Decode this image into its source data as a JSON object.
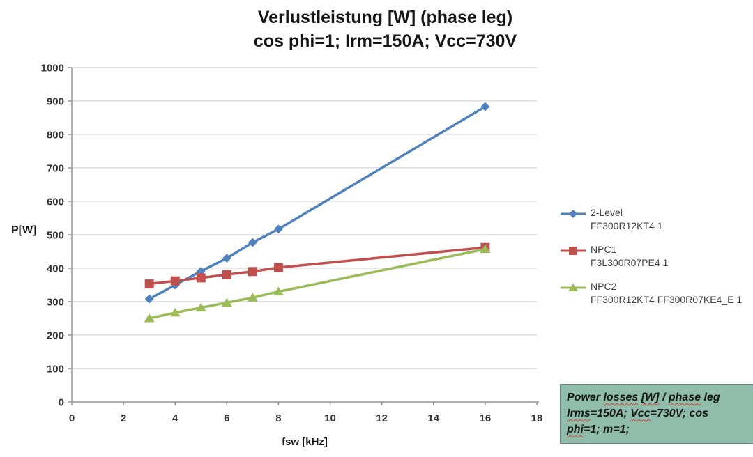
{
  "title": {
    "line1": "Verlustleistung [W] (phase leg)",
    "line2": "cos phi=1; Irm=150A; Vcc=730V"
  },
  "axes": {
    "y_label": "P[W]",
    "x_label": "fsw [kHz]"
  },
  "legend": {
    "items": [
      {
        "label": "2-Level",
        "part": "FF300R12KT4 1",
        "color": "#4F81BD",
        "marker": "diamond"
      },
      {
        "label": "NPC1",
        "part": "F3L300R07PE4 1",
        "color": "#C0504D",
        "marker": "square"
      },
      {
        "label": "NPC2",
        "part": "FF300R12KT4 FF300R07KE4_E 1",
        "color": "#9BBB59",
        "marker": "triangle"
      }
    ]
  },
  "note_box": {
    "bg_color": "#8FBCAB",
    "text": "Power losses [W] / phase leg Irms=150A; Vcc=730V; cos phi=1; m=1;",
    "lines": [
      [
        {
          "t": "Power ",
          "w": false
        },
        {
          "t": "losses",
          "w": true
        },
        {
          "t": " ",
          "w": false
        },
        {
          "t": "[W]",
          "w": true
        },
        {
          "t": " / ",
          "w": false
        },
        {
          "t": "phase",
          "w": true
        },
        {
          "t": " leg",
          "w": false
        }
      ],
      [
        {
          "t": "Irms",
          "w": true
        },
        {
          "t": "=150A; ",
          "w": false
        },
        {
          "t": "Vcc",
          "w": true
        },
        {
          "t": "=730V; cos",
          "w": false
        }
      ],
      [
        {
          "t": "phi",
          "w": true
        },
        {
          "t": "=1; m=1;",
          "w": false
        }
      ]
    ]
  },
  "chart_data": {
    "type": "line",
    "title": "Verlustleistung [W] (phase leg) cos phi=1; Irm=150A; Vcc=730V",
    "xlabel": "fsw [kHz]",
    "ylabel": "P[W]",
    "xlim": [
      0,
      18
    ],
    "ylim": [
      0,
      1000
    ],
    "x_ticks": [
      0,
      2,
      4,
      6,
      8,
      10,
      12,
      14,
      16,
      18
    ],
    "y_ticks": [
      0,
      100,
      200,
      300,
      400,
      500,
      600,
      700,
      800,
      900,
      1000
    ],
    "grid": "horizontal",
    "legend_position": "right",
    "x": [
      3,
      4,
      5,
      6,
      7,
      8,
      16
    ],
    "series": [
      {
        "name": "2-Level FF300R12KT4 1",
        "color": "#4F81BD",
        "marker": "diamond",
        "values": [
          308,
          350,
          391,
          430,
          477,
          517,
          883
        ]
      },
      {
        "name": "NPC1 F3L300R07PE4 1",
        "color": "#C0504D",
        "marker": "square",
        "values": [
          353,
          362,
          371,
          381,
          390,
          402,
          462
        ]
      },
      {
        "name": "NPC2 FF300R12KT4 FF300R07KE4_E 1",
        "color": "#9BBB59",
        "marker": "triangle",
        "values": [
          250,
          267,
          282,
          297,
          312,
          330,
          457
        ]
      }
    ]
  },
  "colors": {
    "grid_line": "#c9c9c9",
    "axis_line": "#959595",
    "tick_text": "#333333",
    "legend_text": "#3f3f3f",
    "note_border": "#5e8a7d"
  }
}
